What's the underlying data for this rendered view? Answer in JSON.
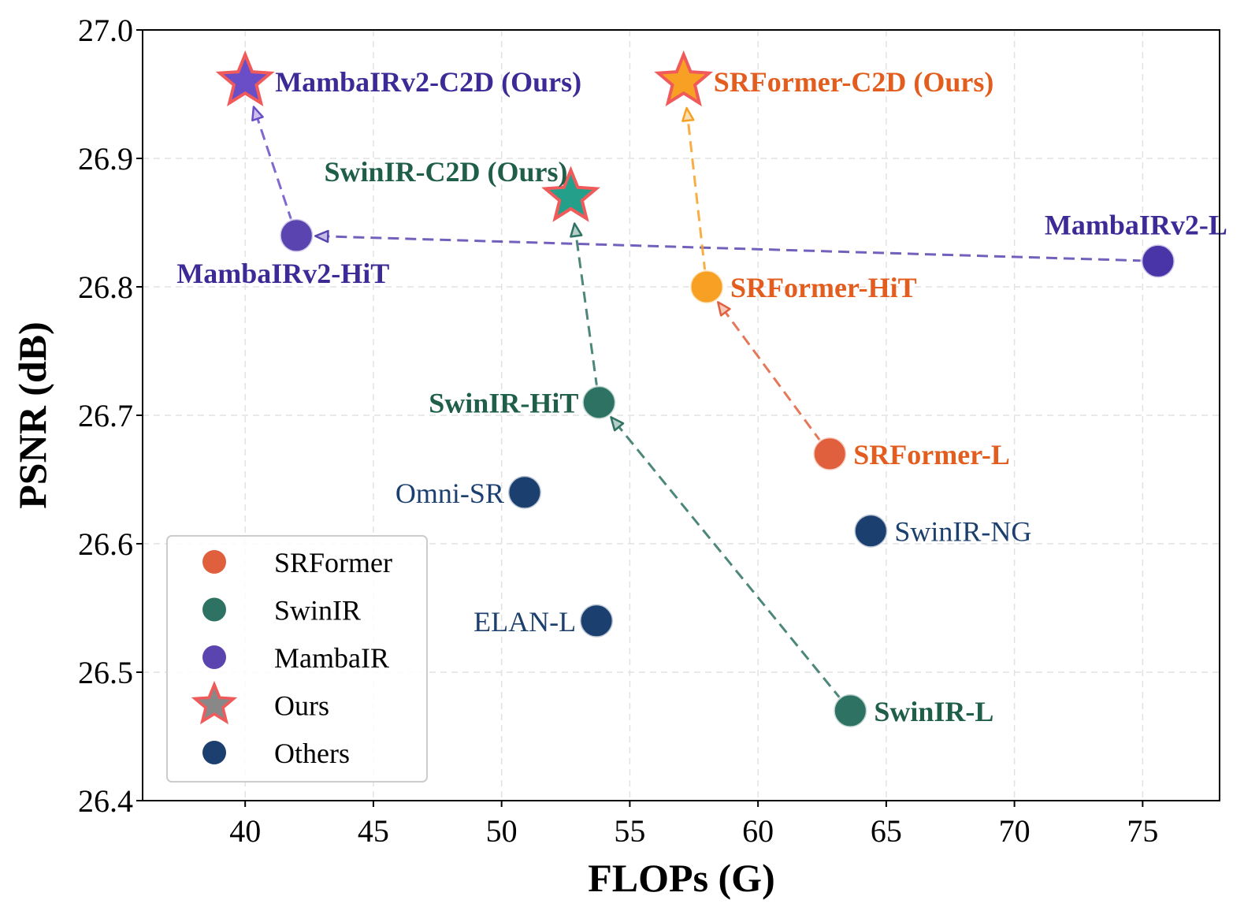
{
  "chart_data": {
    "type": "scatter",
    "xlabel": "FLOPs (G)",
    "ylabel": "PSNR (dB)",
    "xlim": [
      36,
      78
    ],
    "ylim": [
      26.4,
      27.0
    ],
    "xticks": [
      40,
      45,
      50,
      55,
      60,
      65,
      70,
      75
    ],
    "yticks": [
      26.4,
      26.5,
      26.6,
      26.7,
      26.8,
      26.9,
      27.0
    ],
    "ytick_labels": [
      "26.4",
      "26.5",
      "26.6",
      "26.7",
      "26.8",
      "26.9",
      "27.0"
    ],
    "grid": true,
    "legend_position": "lower-left",
    "colors": {
      "SRFormer": "#e0603d",
      "SwinIR": "#2e7263",
      "MambaIR": "#5a44b0",
      "Ours": "#888888",
      "Others": "#1b3f6e"
    },
    "legend": [
      {
        "label": "SRFormer",
        "marker": "circle",
        "color": "#e0603d"
      },
      {
        "label": "SwinIR",
        "marker": "circle",
        "color": "#2e7263"
      },
      {
        "label": "MambaIR",
        "marker": "circle",
        "color": "#5a44b0"
      },
      {
        "label": "Ours",
        "marker": "star",
        "color": "#888888",
        "edge": "#f05a5a"
      },
      {
        "label": "Others",
        "marker": "circle",
        "color": "#1b3f6e"
      }
    ],
    "points": [
      {
        "id": "mambairv2-c2d",
        "label": "MambaIRv2-C2D (Ours)",
        "x": 40.0,
        "y": 26.96,
        "marker": "star",
        "color": "#6a4ec8",
        "edge": "#f05a5a",
        "label_color": "#3d2a96",
        "bold": true,
        "label_side": "right"
      },
      {
        "id": "srformer-c2d",
        "label": "SRFormer-C2D (Ours)",
        "x": 57.1,
        "y": 26.96,
        "marker": "star",
        "color": "#f7a024",
        "edge": "#f05a5a",
        "label_color": "#e25d1e",
        "bold": true,
        "label_side": "right"
      },
      {
        "id": "swinir-c2d",
        "label": "SwinIR-C2D (Ours)",
        "x": 52.7,
        "y": 26.87,
        "marker": "star",
        "color": "#24a08a",
        "edge": "#f05a5a",
        "label_color": "#1f5e48",
        "bold": true,
        "label_side": "above-left"
      },
      {
        "id": "mambairv2-hit",
        "label": "MambaIRv2-HiT",
        "x": 42.0,
        "y": 26.84,
        "marker": "circle",
        "color": "#5a44b0",
        "label_color": "#3d2a96",
        "bold": true,
        "label_side": "below"
      },
      {
        "id": "mambairv2-l",
        "label": "MambaIRv2-L",
        "x": 75.6,
        "y": 26.82,
        "marker": "circle",
        "color": "#4a35a8",
        "label_color": "#3d2a96",
        "bold": true,
        "label_side": "above"
      },
      {
        "id": "srformer-hit",
        "label": "SRFormer-HiT",
        "x": 58.0,
        "y": 26.8,
        "marker": "circle",
        "color": "#f7a024",
        "label_color": "#e25d1e",
        "bold": true,
        "label_side": "right"
      },
      {
        "id": "swinir-hit",
        "label": "SwinIR-HiT",
        "x": 53.8,
        "y": 26.71,
        "marker": "circle",
        "color": "#2e7263",
        "label_color": "#1f5e48",
        "bold": true,
        "label_side": "left"
      },
      {
        "id": "srformer-l",
        "label": "SRFormer-L",
        "x": 62.8,
        "y": 26.67,
        "marker": "circle",
        "color": "#e0603d",
        "label_color": "#e25d1e",
        "bold": true,
        "label_side": "right"
      },
      {
        "id": "omni-sr",
        "label": "Omni-SR",
        "x": 50.9,
        "y": 26.64,
        "marker": "circle",
        "color": "#1b3f6e",
        "label_color": "#1b3f6e",
        "bold": false,
        "label_side": "left"
      },
      {
        "id": "swinir-ng",
        "label": "SwinIR-NG",
        "x": 64.4,
        "y": 26.61,
        "marker": "circle",
        "color": "#1b3f6e",
        "label_color": "#1b3f6e",
        "bold": false,
        "label_side": "right"
      },
      {
        "id": "elan-l",
        "label": "ELAN-L",
        "x": 53.7,
        "y": 26.54,
        "marker": "circle",
        "color": "#1b3f6e",
        "label_color": "#1b3f6e",
        "bold": false,
        "label_side": "left"
      },
      {
        "id": "swinir-l",
        "label": "SwinIR-L",
        "x": 63.6,
        "y": 26.47,
        "marker": "circle",
        "color": "#2e7263",
        "label_color": "#1f5e48",
        "bold": true,
        "label_side": "right"
      }
    ],
    "arrows": [
      {
        "from": "mambairv2-l",
        "to": "mambairv2-hit",
        "color": "#5a44b0"
      },
      {
        "from": "mambairv2-hit",
        "to": "mambairv2-c2d",
        "color": "#6a4ec8"
      },
      {
        "from": "swinir-l",
        "to": "swinir-hit",
        "color": "#2e7263"
      },
      {
        "from": "swinir-hit",
        "to": "swinir-c2d",
        "color": "#2e7263"
      },
      {
        "from": "srformer-l",
        "to": "srformer-hit",
        "color": "#e0603d"
      },
      {
        "from": "srformer-hit",
        "to": "srformer-c2d",
        "color": "#f7a024"
      }
    ]
  }
}
